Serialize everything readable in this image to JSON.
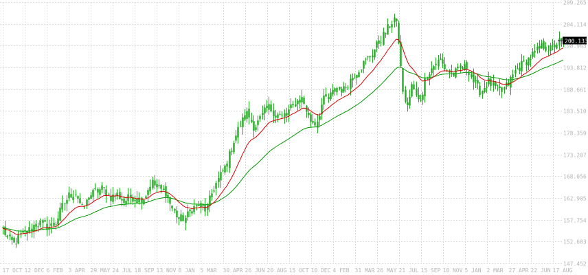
{
  "chart_data": {
    "type": "candlestick",
    "y_ticks": [
      147.452,
      152.603,
      157.754,
      162.905,
      168.056,
      173.207,
      178.359,
      183.51,
      188.661,
      193.812,
      198.963,
      204.114,
      209.265
    ],
    "x_ticks": [
      "17 OCT",
      "12 DEC",
      "6 FEB",
      "3 APR",
      "29 MAY",
      "24 JUL",
      "18 SEP",
      "13 NOV",
      "8 JAN",
      "5 MAR",
      "30 APR",
      "26 JUN",
      "20 AUG",
      "15 OCT",
      "10 DEC",
      "4 FEB",
      "31 MAR",
      "26 MAY",
      "21 JUL",
      "15 SEP",
      "10 NOV",
      "5 JAN",
      "2 MAR",
      "27 APR",
      "22 JUN",
      "17 AUG"
    ],
    "ylim": [
      147.452,
      209.265
    ],
    "last_price": "200.133",
    "ma_fast_color": "#dd0000",
    "ma_slow_color": "#009900",
    "candle_color": "#22aa22",
    "grid": true,
    "anchors": [
      [
        0,
        156.5
      ],
      [
        10,
        153.8
      ],
      [
        20,
        152.0
      ],
      [
        30,
        154.2
      ],
      [
        40,
        155.0
      ],
      [
        50,
        156.6
      ],
      [
        60,
        157.0
      ],
      [
        70,
        156.0
      ],
      [
        80,
        156.8
      ],
      [
        90,
        160.8
      ],
      [
        100,
        163.5
      ],
      [
        110,
        164.2
      ],
      [
        120,
        160.0
      ],
      [
        130,
        163.5
      ],
      [
        140,
        164.5
      ],
      [
        150,
        165.3
      ],
      [
        160,
        163.0
      ],
      [
        170,
        163.8
      ],
      [
        180,
        162.0
      ],
      [
        190,
        163.3
      ],
      [
        200,
        162.5
      ],
      [
        210,
        163.0
      ],
      [
        220,
        166.8
      ],
      [
        230,
        165.0
      ],
      [
        240,
        164.6
      ],
      [
        250,
        160.5
      ],
      [
        260,
        158.0
      ],
      [
        270,
        158.2
      ],
      [
        280,
        160.5
      ],
      [
        290,
        161.3
      ],
      [
        300,
        160.0
      ],
      [
        310,
        165.0
      ],
      [
        320,
        168.0
      ],
      [
        330,
        171.0
      ],
      [
        340,
        176.5
      ],
      [
        350,
        180.5
      ],
      [
        360,
        183.0
      ],
      [
        370,
        179.5
      ],
      [
        380,
        182.0
      ],
      [
        390,
        184.5
      ],
      [
        400,
        183.0
      ],
      [
        410,
        182.0
      ],
      [
        420,
        183.5
      ],
      [
        430,
        185.5
      ],
      [
        440,
        186.5
      ],
      [
        450,
        181.5
      ],
      [
        460,
        180.5
      ],
      [
        470,
        186.0
      ],
      [
        480,
        187.0
      ],
      [
        490,
        189.0
      ],
      [
        500,
        188.5
      ],
      [
        510,
        191.0
      ],
      [
        520,
        193.0
      ],
      [
        530,
        195.0
      ],
      [
        540,
        196.8
      ],
      [
        550,
        199.5
      ],
      [
        560,
        202.0
      ],
      [
        570,
        204.5
      ],
      [
        575,
        205.8
      ],
      [
        580,
        200.0
      ],
      [
        585,
        190.0
      ],
      [
        590,
        184.5
      ],
      [
        595,
        186.0
      ],
      [
        600,
        190.0
      ],
      [
        605,
        187.0
      ],
      [
        610,
        185.5
      ],
      [
        615,
        188.0
      ],
      [
        620,
        192.0
      ],
      [
        630,
        194.0
      ],
      [
        640,
        195.5
      ],
      [
        650,
        193.0
      ],
      [
        660,
        192.2
      ],
      [
        670,
        193.5
      ],
      [
        680,
        194.0
      ],
      [
        690,
        190.0
      ],
      [
        700,
        188.0
      ],
      [
        710,
        190.5
      ],
      [
        720,
        189.0
      ],
      [
        730,
        188.0
      ],
      [
        740,
        190.0
      ],
      [
        750,
        193.0
      ],
      [
        760,
        194.5
      ],
      [
        770,
        196.0
      ],
      [
        780,
        197.5
      ],
      [
        790,
        199.0
      ],
      [
        800,
        198.0
      ],
      [
        810,
        199.5
      ],
      [
        816,
        200.133
      ]
    ]
  }
}
